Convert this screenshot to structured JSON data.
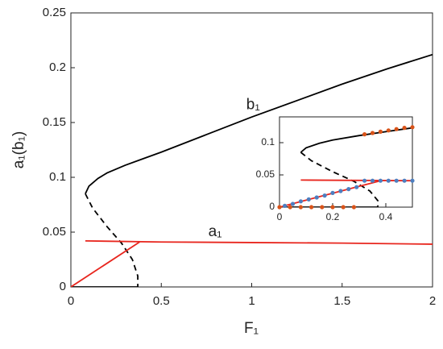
{
  "chart_data": [
    {
      "type": "line",
      "xlabel": "F₁",
      "ylabel": "a₁(b₁)",
      "xlim": [
        0,
        2
      ],
      "xticks": [
        0,
        0.5,
        1,
        1.5,
        2
      ],
      "ylim": [
        0,
        0.25
      ],
      "yticks": [
        0,
        0.05,
        0.1,
        0.15,
        0.2,
        0.25
      ],
      "annotations": [
        {
          "text": "b₁",
          "x": 0.97,
          "y": 0.166
        },
        {
          "text": "a₁",
          "x": 0.76,
          "y": 0.05
        }
      ],
      "series": [
        {
          "color": "#000000",
          "style": "solid",
          "x": [
            0.08,
            0.1,
            0.15,
            0.2,
            0.3,
            0.4,
            0.5,
            0.75,
            1,
            1.25,
            1.5,
            1.75,
            2
          ],
          "values": [
            0.085,
            0.092,
            0.099,
            0.104,
            0.111,
            0.117,
            0.123,
            0.139,
            0.155,
            0.17,
            0.185,
            0.199,
            0.212
          ]
        },
        {
          "color": "#000000",
          "style": "dashed",
          "x": [
            0.08,
            0.12,
            0.2,
            0.28,
            0.34,
            0.37,
            0.37
          ],
          "values": [
            0.085,
            0.072,
            0.055,
            0.04,
            0.025,
            0.01,
            0
          ]
        },
        {
          "color": "#000000",
          "style": "solid",
          "x": [
            0,
            0.37
          ],
          "values": [
            0,
            0
          ]
        },
        {
          "color": "#e8261e",
          "style": "solid",
          "x": [
            0.08,
            0.5,
            1,
            1.5,
            2
          ],
          "values": [
            0.042,
            0.041,
            0.0405,
            0.04,
            0.039
          ]
        },
        {
          "color": "#e8261e",
          "style": "solid",
          "x": [
            0,
            0.38
          ],
          "values": [
            0,
            0.041
          ]
        }
      ]
    },
    {
      "type": "scatter",
      "xlim": [
        0,
        0.5
      ],
      "xticks": [
        0,
        0.2,
        0.4
      ],
      "ylim": [
        0,
        0.14
      ],
      "yticks": [
        0,
        0.05,
        0.1
      ],
      "series": [
        {
          "color": "#d95319",
          "x": [
            0,
            0.04,
            0.08,
            0.12,
            0.16,
            0.2,
            0.24,
            0.28
          ],
          "values": [
            0,
            0,
            0,
            0,
            0,
            0,
            0,
            0
          ]
        },
        {
          "color": "#d95319",
          "x": [
            0.32,
            0.35,
            0.38,
            0.41,
            0.44,
            0.47,
            0.5
          ],
          "values": [
            0.113,
            0.115,
            0.117,
            0.119,
            0.121,
            0.123,
            0.124
          ]
        },
        {
          "color": "#4d7fc0",
          "x": [
            0.02,
            0.05,
            0.08,
            0.11,
            0.14,
            0.17,
            0.2,
            0.23,
            0.26,
            0.29
          ],
          "values": [
            0.002,
            0.005,
            0.009,
            0.012,
            0.015,
            0.018,
            0.022,
            0.025,
            0.028,
            0.031
          ]
        },
        {
          "color": "#4d7fc0",
          "x": [
            0.32,
            0.35,
            0.38,
            0.41,
            0.44,
            0.47,
            0.5
          ],
          "values": [
            0.041,
            0.041,
            0.041,
            0.041,
            0.041,
            0.041,
            0.041
          ]
        }
      ]
    }
  ]
}
